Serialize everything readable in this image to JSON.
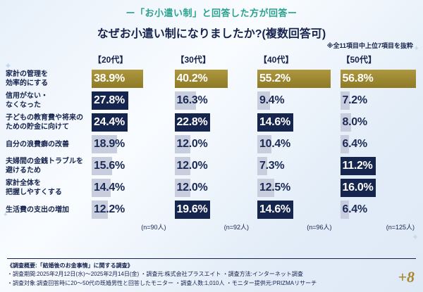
{
  "header": {
    "tagline": "ー「お小遣い制」と回答した方が回答ー",
    "title": "なぜお小遣い制になりましたか?(複数回答可)",
    "note": "※全11項目中上位7項目を抜粋"
  },
  "columns": [
    {
      "label": "【20代】",
      "n": "(n=90人)"
    },
    {
      "label": "【30代】",
      "n": "(n=92人)"
    },
    {
      "label": "【40代】",
      "n": "(n=96人)"
    },
    {
      "label": "【50代】",
      "n": "(n=125人)"
    }
  ],
  "grid": {
    "rows": [
      {
        "label_lines": [
          "家計の管理を",
          "効率的にする"
        ],
        "cells": [
          {
            "text": "38.9%",
            "value": 38.9,
            "style": "gold"
          },
          {
            "text": "40.2%",
            "value": 40.2,
            "style": "gold"
          },
          {
            "text": "55.2%",
            "value": 55.2,
            "style": "gold"
          },
          {
            "text": "56.8%",
            "value": 56.8,
            "style": "gold"
          }
        ]
      },
      {
        "label_lines": [
          "信用がない・",
          "なくなった"
        ],
        "cells": [
          {
            "text": "27.8%",
            "value": 27.8,
            "style": "dark"
          },
          {
            "text": "16.3%",
            "value": 16.3,
            "style": "gray"
          },
          {
            "text": "9.4%",
            "value": 9.4,
            "style": "gray"
          },
          {
            "text": "7.2%",
            "value": 7.2,
            "style": "gray"
          }
        ]
      },
      {
        "label_lines": [
          "子どもの教育費や将来の",
          "ための貯金に向けて"
        ],
        "cells": [
          {
            "text": "24.4%",
            "value": 24.4,
            "style": "dark"
          },
          {
            "text": "22.8%",
            "value": 22.8,
            "style": "dark"
          },
          {
            "text": "14.6%",
            "value": 14.6,
            "style": "dark"
          },
          {
            "text": "8.0%",
            "value": 8.0,
            "style": "gray"
          }
        ]
      },
      {
        "label_lines": [
          "自分の浪費癖の改善"
        ],
        "cells": [
          {
            "text": "18.9%",
            "value": 18.9,
            "style": "gray"
          },
          {
            "text": "12.0%",
            "value": 12.0,
            "style": "gray"
          },
          {
            "text": "10.4%",
            "value": 10.4,
            "style": "gray"
          },
          {
            "text": "6.4%",
            "value": 6.4,
            "style": "gray"
          }
        ]
      },
      {
        "label_lines": [
          "夫婦間の金銭トラブルを",
          "避けるため"
        ],
        "cells": [
          {
            "text": "15.6%",
            "value": 15.6,
            "style": "gray"
          },
          {
            "text": "12.0%",
            "value": 12.0,
            "style": "gray"
          },
          {
            "text": "7.3%",
            "value": 7.3,
            "style": "gray"
          },
          {
            "text": "11.2%",
            "value": 11.2,
            "style": "dark"
          }
        ]
      },
      {
        "label_lines": [
          "家計全体を",
          "把握しやすくする"
        ],
        "cells": [
          {
            "text": "14.4%",
            "value": 14.4,
            "style": "gray"
          },
          {
            "text": "12.0%",
            "value": 12.0,
            "style": "gray"
          },
          {
            "text": "12.5%",
            "value": 12.5,
            "style": "gray"
          },
          {
            "text": "16.0%",
            "value": 16.0,
            "style": "dark"
          }
        ]
      },
      {
        "label_lines": [
          "生活費の支出の増加"
        ],
        "cells": [
          {
            "text": "12.2%",
            "value": 12.2,
            "style": "gray"
          },
          {
            "text": "19.6%",
            "value": 19.6,
            "style": "dark"
          },
          {
            "text": "14.6%",
            "value": 14.6,
            "style": "dark"
          },
          {
            "text": "6.4%",
            "value": 6.4,
            "style": "gray"
          }
        ]
      }
    ]
  },
  "chart_data": {
    "type": "bar",
    "orientation": "horizontal",
    "title": "なぜお小遣い制になりましたか?(複数回答可)",
    "note": "※全11項目中上位7項目を抜粋",
    "categories": [
      "家計の管理を効率的にする",
      "信用がない・なくなった",
      "子どもの教育費や将来のための貯金に向けて",
      "自分の浪費癖の改善",
      "夫婦間の金銭トラブルを避けるため",
      "家計全体を把握しやすくする",
      "生活費の支出の増加"
    ],
    "series": [
      {
        "name": "20代",
        "n": 90,
        "values": [
          38.9,
          27.8,
          24.4,
          18.9,
          15.6,
          14.4,
          12.2
        ]
      },
      {
        "name": "30代",
        "n": 92,
        "values": [
          40.2,
          16.3,
          22.8,
          12.0,
          12.0,
          12.0,
          19.6
        ]
      },
      {
        "name": "40代",
        "n": 96,
        "values": [
          55.2,
          9.4,
          14.6,
          10.4,
          7.3,
          12.5,
          14.6
        ]
      },
      {
        "name": "50代",
        "n": 125,
        "values": [
          56.8,
          7.2,
          8.0,
          6.4,
          11.2,
          16.0,
          6.4
        ]
      }
    ],
    "xlim": [
      0,
      58
    ],
    "unit": "%"
  },
  "footer": {
    "heading": "《調査概要:「結婚後のお金事情」に関する調査》",
    "line1": "・調査期間:2025年2月12日(水)〜2025年2月14日(金)  ・調査元:株式会社プラスエイト  ・調査方法:インターネット調査",
    "line2": "・調査対象:調査回答時に20〜50代の既婚男性と回答したモニター ・調査人数:1,010人 ・モニター提供元:PRIZMAリサーチ"
  },
  "logo": {
    "text": "+8"
  },
  "decor": {
    "sparkle": "✦"
  },
  "colors": {
    "gold": "#9a8528",
    "navy": "#16254e",
    "gray_bar": "#c9cede",
    "teal": "#2aa18e"
  }
}
